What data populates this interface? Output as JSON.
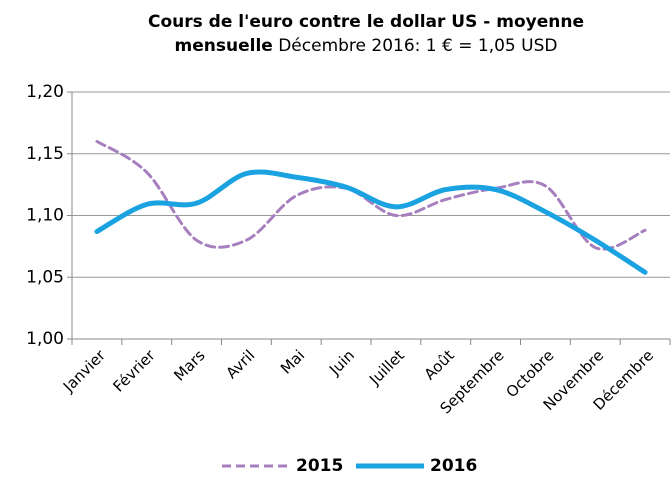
{
  "chart_data": {
    "type": "line",
    "title": "Cours de l'euro contre le dollar US - moyenne mensuelle",
    "subtitle": "Décembre 2016: 1 € = 1,05 USD",
    "categories": [
      "Janvier",
      "Février",
      "Mars",
      "Avril",
      "Mai",
      "Juin",
      "Juillet",
      "Août",
      "Septembre",
      "Octobre",
      "Novembre",
      "Décembre"
    ],
    "series": [
      {
        "name": "2015",
        "color": "#a77fbf",
        "dashed": true,
        "values": [
          1.16,
          1.135,
          1.08,
          1.08,
          1.116,
          1.122,
          1.1,
          1.113,
          1.122,
          1.124,
          1.074,
          1.088
        ]
      },
      {
        "name": "2016",
        "color": "#1aa3e0",
        "dashed": false,
        "values": [
          1.087,
          1.109,
          1.11,
          1.134,
          1.131,
          1.123,
          1.107,
          1.121,
          1.121,
          1.103,
          1.08,
          1.054
        ]
      }
    ],
    "ylim": [
      1.0,
      1.2
    ],
    "yticks": [
      {
        "value": 1.0,
        "label": "1,00"
      },
      {
        "value": 1.05,
        "label": "1,05"
      },
      {
        "value": 1.1,
        "label": "1,10"
      },
      {
        "value": 1.15,
        "label": "1,15"
      },
      {
        "value": 1.2,
        "label": "1,20"
      }
    ],
    "grid": true,
    "legend": "bottom"
  }
}
